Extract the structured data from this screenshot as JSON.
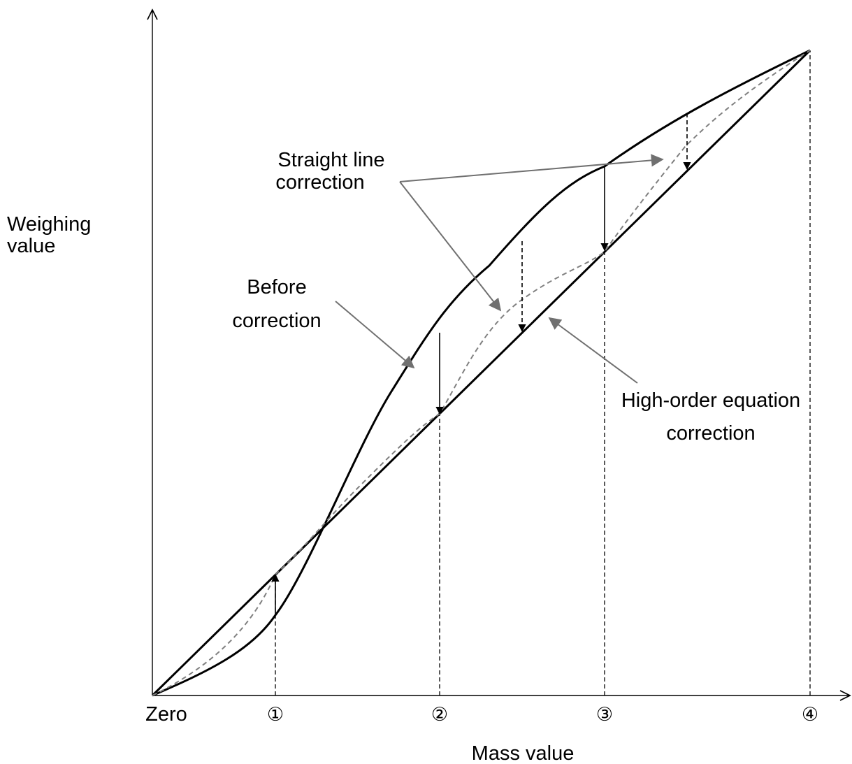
{
  "axes": {
    "y_label_line1": "Weighing",
    "y_label_line2": "value",
    "x_label": "Mass value",
    "origin_label": "Zero",
    "ticks": [
      "①",
      "②",
      "③",
      "④"
    ]
  },
  "annotations": {
    "straight_line_1": "Straight line",
    "straight_line_2": "correction",
    "before_1": "Before",
    "before_2": "correction",
    "high_order_1": "High-order equation",
    "high_order_2": "correction"
  },
  "colors": {
    "curve": "#000000",
    "corrected_dashed": "#808080",
    "pointer_arrow": "#707070"
  }
}
